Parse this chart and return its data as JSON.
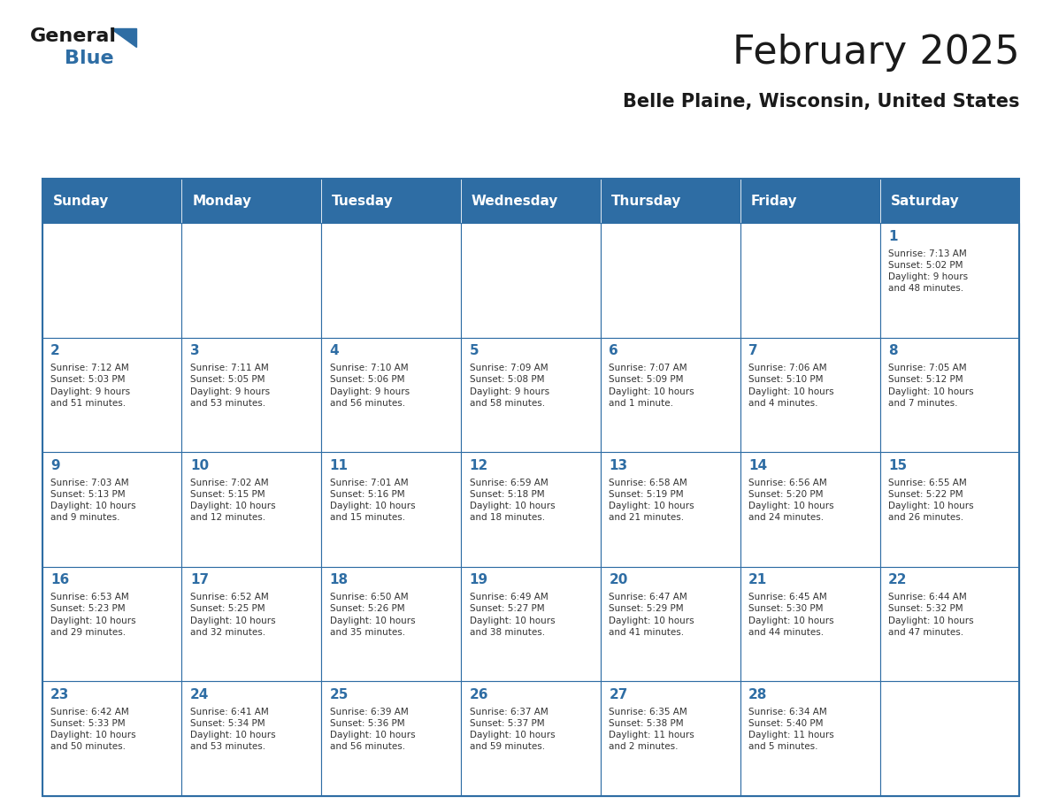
{
  "title": "February 2025",
  "subtitle": "Belle Plaine, Wisconsin, United States",
  "header_bg": "#2E6DA4",
  "header_text_color": "#FFFFFF",
  "cell_bg": "#FFFFFF",
  "cell_border_color": "#2E6DA4",
  "day_number_color": "#2E6DA4",
  "cell_text_color": "#333333",
  "days_of_week": [
    "Sunday",
    "Monday",
    "Tuesday",
    "Wednesday",
    "Thursday",
    "Friday",
    "Saturday"
  ],
  "logo_text_general": "General",
  "logo_text_blue": "Blue",
  "logo_color_general": "#1a1a1a",
  "logo_color_blue": "#2E6DA4",
  "calendar_data": [
    [
      null,
      null,
      null,
      null,
      null,
      null,
      {
        "day": 1,
        "sunrise": "7:13 AM",
        "sunset": "5:02 PM",
        "daylight": "9 hours\nand 48 minutes."
      }
    ],
    [
      {
        "day": 2,
        "sunrise": "7:12 AM",
        "sunset": "5:03 PM",
        "daylight": "9 hours\nand 51 minutes."
      },
      {
        "day": 3,
        "sunrise": "7:11 AM",
        "sunset": "5:05 PM",
        "daylight": "9 hours\nand 53 minutes."
      },
      {
        "day": 4,
        "sunrise": "7:10 AM",
        "sunset": "5:06 PM",
        "daylight": "9 hours\nand 56 minutes."
      },
      {
        "day": 5,
        "sunrise": "7:09 AM",
        "sunset": "5:08 PM",
        "daylight": "9 hours\nand 58 minutes."
      },
      {
        "day": 6,
        "sunrise": "7:07 AM",
        "sunset": "5:09 PM",
        "daylight": "10 hours\nand 1 minute."
      },
      {
        "day": 7,
        "sunrise": "7:06 AM",
        "sunset": "5:10 PM",
        "daylight": "10 hours\nand 4 minutes."
      },
      {
        "day": 8,
        "sunrise": "7:05 AM",
        "sunset": "5:12 PM",
        "daylight": "10 hours\nand 7 minutes."
      }
    ],
    [
      {
        "day": 9,
        "sunrise": "7:03 AM",
        "sunset": "5:13 PM",
        "daylight": "10 hours\nand 9 minutes."
      },
      {
        "day": 10,
        "sunrise": "7:02 AM",
        "sunset": "5:15 PM",
        "daylight": "10 hours\nand 12 minutes."
      },
      {
        "day": 11,
        "sunrise": "7:01 AM",
        "sunset": "5:16 PM",
        "daylight": "10 hours\nand 15 minutes."
      },
      {
        "day": 12,
        "sunrise": "6:59 AM",
        "sunset": "5:18 PM",
        "daylight": "10 hours\nand 18 minutes."
      },
      {
        "day": 13,
        "sunrise": "6:58 AM",
        "sunset": "5:19 PM",
        "daylight": "10 hours\nand 21 minutes."
      },
      {
        "day": 14,
        "sunrise": "6:56 AM",
        "sunset": "5:20 PM",
        "daylight": "10 hours\nand 24 minutes."
      },
      {
        "day": 15,
        "sunrise": "6:55 AM",
        "sunset": "5:22 PM",
        "daylight": "10 hours\nand 26 minutes."
      }
    ],
    [
      {
        "day": 16,
        "sunrise": "6:53 AM",
        "sunset": "5:23 PM",
        "daylight": "10 hours\nand 29 minutes."
      },
      {
        "day": 17,
        "sunrise": "6:52 AM",
        "sunset": "5:25 PM",
        "daylight": "10 hours\nand 32 minutes."
      },
      {
        "day": 18,
        "sunrise": "6:50 AM",
        "sunset": "5:26 PM",
        "daylight": "10 hours\nand 35 minutes."
      },
      {
        "day": 19,
        "sunrise": "6:49 AM",
        "sunset": "5:27 PM",
        "daylight": "10 hours\nand 38 minutes."
      },
      {
        "day": 20,
        "sunrise": "6:47 AM",
        "sunset": "5:29 PM",
        "daylight": "10 hours\nand 41 minutes."
      },
      {
        "day": 21,
        "sunrise": "6:45 AM",
        "sunset": "5:30 PM",
        "daylight": "10 hours\nand 44 minutes."
      },
      {
        "day": 22,
        "sunrise": "6:44 AM",
        "sunset": "5:32 PM",
        "daylight": "10 hours\nand 47 minutes."
      }
    ],
    [
      {
        "day": 23,
        "sunrise": "6:42 AM",
        "sunset": "5:33 PM",
        "daylight": "10 hours\nand 50 minutes."
      },
      {
        "day": 24,
        "sunrise": "6:41 AM",
        "sunset": "5:34 PM",
        "daylight": "10 hours\nand 53 minutes."
      },
      {
        "day": 25,
        "sunrise": "6:39 AM",
        "sunset": "5:36 PM",
        "daylight": "10 hours\nand 56 minutes."
      },
      {
        "day": 26,
        "sunrise": "6:37 AM",
        "sunset": "5:37 PM",
        "daylight": "10 hours\nand 59 minutes."
      },
      {
        "day": 27,
        "sunrise": "6:35 AM",
        "sunset": "5:38 PM",
        "daylight": "11 hours\nand 2 minutes."
      },
      {
        "day": 28,
        "sunrise": "6:34 AM",
        "sunset": "5:40 PM",
        "daylight": "11 hours\nand 5 minutes."
      },
      null
    ]
  ]
}
